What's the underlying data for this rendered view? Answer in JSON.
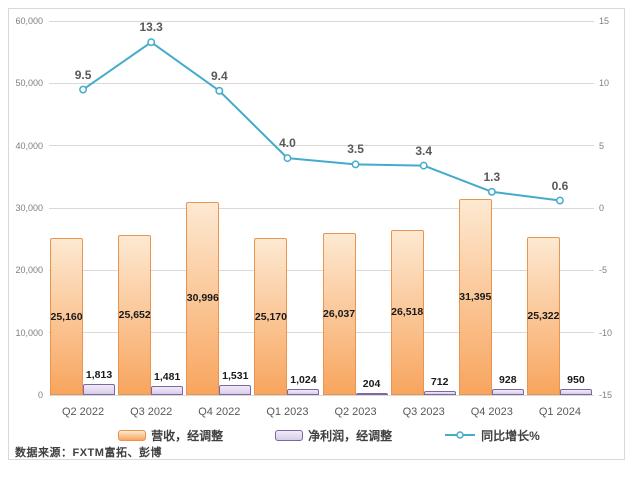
{
  "source_note": "数据来源：FXTM富拓、彭博",
  "colors": {
    "revenue_fill_top": "#FDE9D2",
    "revenue_fill_bottom": "#F8A55E",
    "revenue_border": "#E9954F",
    "profit_fill_top": "#F0EBF7",
    "profit_fill_bottom": "#D8CCEA",
    "profit_border": "#7D66A1",
    "growth_line": "#44ABCB",
    "gridline": "#D9D9D9",
    "axis_text": "#7F7F7F",
    "category_text": "#595959",
    "bar_label": "#1A1A1A",
    "line_label": "#595959",
    "legend_text": "#404040",
    "source_text": "#404040",
    "panel_border": "#D9D9D9"
  },
  "chart_data": {
    "type": "combo (clustered bar + line, dual axis)",
    "categories": [
      "Q2 2022",
      "Q3 2022",
      "Q4 2022",
      "Q1 2023",
      "Q2 2023",
      "Q3 2023",
      "Q4 2023",
      "Q1 2024"
    ],
    "series": [
      {
        "name": "营收，经调整",
        "type": "bar",
        "axis": "left",
        "values": [
          25160,
          25652,
          30996,
          25170,
          26037,
          26518,
          31395,
          25322
        ],
        "labels": [
          "25,160",
          "25,652",
          "30,996",
          "25,170",
          "26,037",
          "26,518",
          "31,395",
          "25,322"
        ],
        "label_position": "inside-center"
      },
      {
        "name": "净利润，经调整",
        "type": "bar",
        "axis": "left",
        "values": [
          1813,
          1481,
          1531,
          1024,
          204,
          712,
          928,
          950
        ],
        "labels": [
          "1,813",
          "1,481",
          "1,531",
          "1,024",
          "204",
          "712",
          "928",
          "950"
        ],
        "label_position": "above"
      },
      {
        "name": "同比增长%",
        "type": "line",
        "axis": "right",
        "values": [
          9.5,
          13.3,
          9.4,
          4.0,
          3.5,
          3.4,
          1.3,
          0.6
        ],
        "labels": [
          "9.5",
          "13.3",
          "9.4",
          "4.0",
          "3.5",
          "3.4",
          "1.3",
          "0.6"
        ],
        "label_position": "above",
        "marker": "circle"
      }
    ],
    "left_axis": {
      "min": 0,
      "max": 60000,
      "ticks": [
        "60,000",
        "50,000",
        "40,000",
        "30,000",
        "20,000",
        "10,000",
        "0"
      ]
    },
    "right_axis": {
      "min": -15,
      "max": 15,
      "ticks": [
        "15",
        "10",
        "5",
        "0",
        "-5",
        "-10",
        "-15"
      ]
    },
    "grid": true,
    "legend_position": "bottom"
  }
}
